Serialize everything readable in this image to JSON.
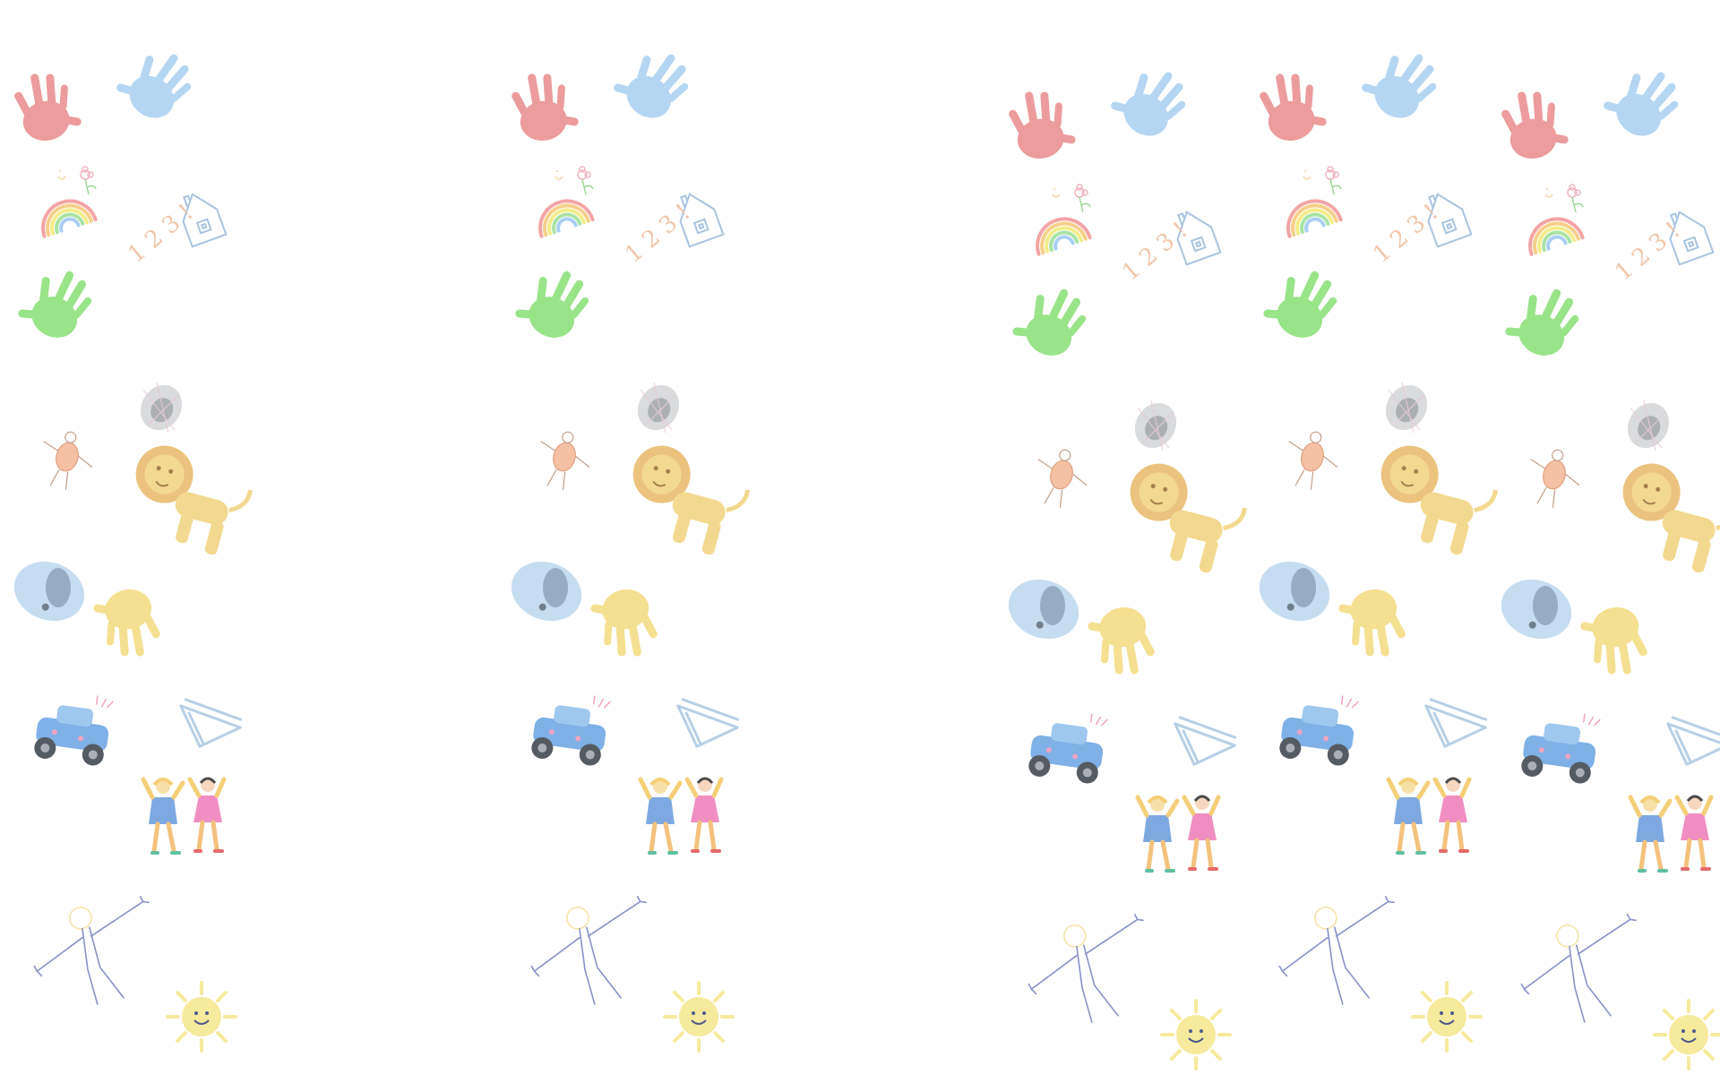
{
  "wallpaper": {
    "background_color": "#ffffff",
    "motifs": [
      {
        "name": "red-handprint",
        "color": "#e98b8b"
      },
      {
        "name": "blue-handprint",
        "color": "#a9cff2"
      },
      {
        "name": "green-handprint",
        "color": "#8fe07d"
      },
      {
        "name": "yellow-handprint",
        "color": "#f5dc84"
      },
      {
        "name": "rainbow",
        "colors": [
          "#f3a5a5",
          "#f6cf8a",
          "#f3ec8a",
          "#a9e3a3",
          "#a9cff2"
        ]
      },
      {
        "name": "flower",
        "color": "#f0b4c2"
      },
      {
        "name": "house",
        "color": "#a9c4e0"
      },
      {
        "name": "numbers-scribble",
        "text": "1 2 3 ! .",
        "color": "#f0c0a3"
      },
      {
        "name": "dark-scribble",
        "color": "#8a8f93"
      },
      {
        "name": "stick-figure-orange",
        "color": "#f1b89a"
      },
      {
        "name": "lion",
        "color": "#f2d37d"
      },
      {
        "name": "blue-blob",
        "color": "#b8d4ee"
      },
      {
        "name": "toy-truck",
        "color": "#7fb0e6"
      },
      {
        "name": "sailboat",
        "color": "#b7cfe6"
      },
      {
        "name": "two-girls",
        "colors": [
          "#7ea9e0",
          "#f08ec2",
          "#f5cf77"
        ]
      },
      {
        "name": "stick-figure-blue",
        "color": "#8892c8"
      },
      {
        "name": "smiling-sun",
        "color": "#f6ea9c"
      }
    ]
  }
}
